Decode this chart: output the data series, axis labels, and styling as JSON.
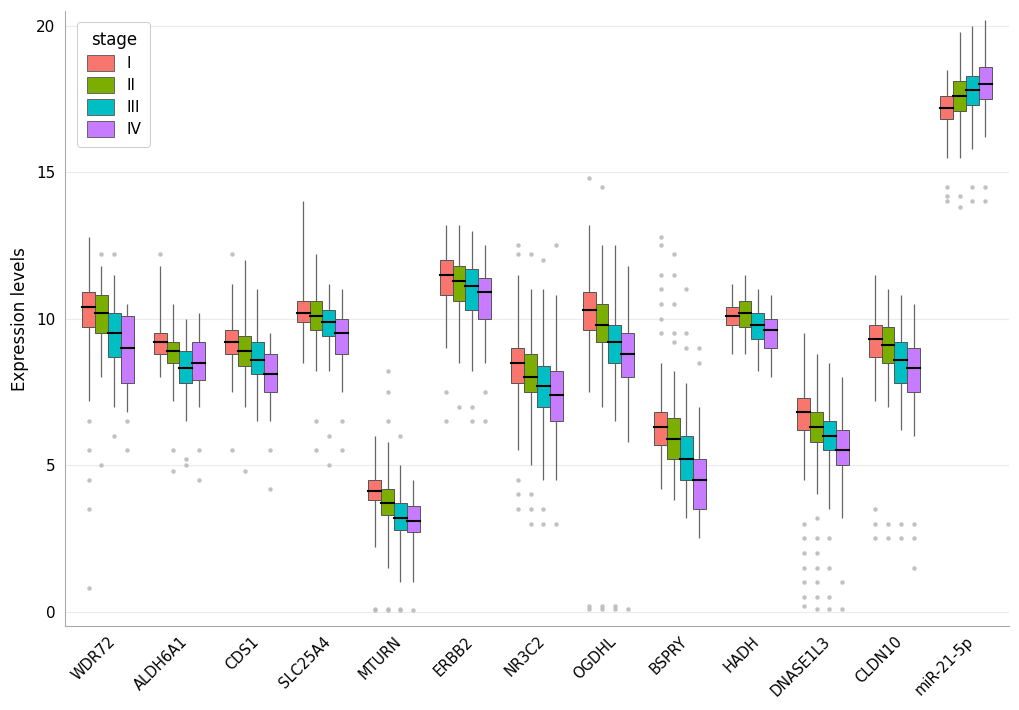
{
  "genes": [
    "WDR72",
    "ALDH6A1",
    "CDS1",
    "SLC25A4",
    "MTURN",
    "ERBB2",
    "NR3C2",
    "OGDHL",
    "BSPRY",
    "HADH",
    "DNASE1L3",
    "CLDN10",
    "miR-21-5p"
  ],
  "stages": [
    "I",
    "II",
    "III",
    "IV"
  ],
  "stage_colors": [
    "#F8766D",
    "#7CAE00",
    "#00BFC4",
    "#C77CFF"
  ],
  "ylabel": "Expression levels",
  "ylim": [
    -0.5,
    20.5
  ],
  "yticks": [
    0,
    5,
    10,
    15,
    20
  ],
  "box_data": {
    "WDR72": {
      "I": {
        "q1": 9.7,
        "median": 10.4,
        "q3": 10.9,
        "whislo": 7.2,
        "whishi": 12.8,
        "fliers": [
          6.5,
          5.5,
          4.5,
          3.5,
          0.8
        ]
      },
      "II": {
        "q1": 9.5,
        "median": 10.2,
        "q3": 10.8,
        "whislo": 8.0,
        "whishi": 11.8,
        "fliers": [
          12.2,
          5.0
        ]
      },
      "III": {
        "q1": 8.7,
        "median": 9.5,
        "q3": 10.2,
        "whislo": 7.0,
        "whishi": 11.5,
        "fliers": [
          12.2,
          6.0
        ]
      },
      "IV": {
        "q1": 7.8,
        "median": 9.0,
        "q3": 10.1,
        "whislo": 6.8,
        "whishi": 10.5,
        "fliers": [
          6.5,
          5.5
        ]
      }
    },
    "ALDH6A1": {
      "I": {
        "q1": 8.8,
        "median": 9.2,
        "q3": 9.5,
        "whislo": 8.0,
        "whishi": 11.8,
        "fliers": [
          12.2
        ]
      },
      "II": {
        "q1": 8.5,
        "median": 8.9,
        "q3": 9.2,
        "whislo": 7.2,
        "whishi": 10.5,
        "fliers": [
          5.5,
          4.8
        ]
      },
      "III": {
        "q1": 7.8,
        "median": 8.3,
        "q3": 8.9,
        "whislo": 6.5,
        "whishi": 10.0,
        "fliers": [
          5.0,
          5.2
        ]
      },
      "IV": {
        "q1": 7.9,
        "median": 8.5,
        "q3": 9.2,
        "whislo": 7.0,
        "whishi": 10.2,
        "fliers": [
          5.5,
          4.5
        ]
      }
    },
    "CDS1": {
      "I": {
        "q1": 8.8,
        "median": 9.2,
        "q3": 9.6,
        "whislo": 7.5,
        "whishi": 11.2,
        "fliers": [
          5.5,
          12.2
        ]
      },
      "II": {
        "q1": 8.4,
        "median": 8.9,
        "q3": 9.4,
        "whislo": 7.0,
        "whishi": 12.0,
        "fliers": [
          4.8
        ]
      },
      "III": {
        "q1": 8.1,
        "median": 8.6,
        "q3": 9.2,
        "whislo": 6.5,
        "whishi": 11.0,
        "fliers": []
      },
      "IV": {
        "q1": 7.5,
        "median": 8.1,
        "q3": 8.8,
        "whislo": 6.5,
        "whishi": 9.5,
        "fliers": [
          5.5,
          4.2
        ]
      }
    },
    "SLC25A4": {
      "I": {
        "q1": 9.9,
        "median": 10.2,
        "q3": 10.6,
        "whislo": 8.5,
        "whishi": 14.0,
        "fliers": []
      },
      "II": {
        "q1": 9.6,
        "median": 10.1,
        "q3": 10.6,
        "whislo": 8.2,
        "whishi": 12.2,
        "fliers": [
          6.5,
          5.5
        ]
      },
      "III": {
        "q1": 9.4,
        "median": 9.9,
        "q3": 10.3,
        "whislo": 8.2,
        "whishi": 11.2,
        "fliers": [
          6.0,
          5.0
        ]
      },
      "IV": {
        "q1": 8.8,
        "median": 9.5,
        "q3": 10.0,
        "whislo": 7.5,
        "whishi": 11.0,
        "fliers": [
          6.5,
          5.5
        ]
      }
    },
    "MTURN": {
      "I": {
        "q1": 3.8,
        "median": 4.1,
        "q3": 4.5,
        "whislo": 2.2,
        "whishi": 6.0,
        "fliers": [
          0.1,
          0.05
        ]
      },
      "II": {
        "q1": 3.3,
        "median": 3.7,
        "q3": 4.2,
        "whislo": 1.5,
        "whishi": 5.8,
        "fliers": [
          0.1,
          0.05,
          6.5,
          7.5,
          8.2
        ]
      },
      "III": {
        "q1": 2.8,
        "median": 3.2,
        "q3": 3.7,
        "whislo": 1.0,
        "whishi": 5.0,
        "fliers": [
          0.05,
          0.1,
          6.0
        ]
      },
      "IV": {
        "q1": 2.7,
        "median": 3.1,
        "q3": 3.6,
        "whislo": 1.0,
        "whishi": 4.5,
        "fliers": [
          0.05
        ]
      }
    },
    "ERBB2": {
      "I": {
        "q1": 10.8,
        "median": 11.5,
        "q3": 12.0,
        "whislo": 9.0,
        "whishi": 13.2,
        "fliers": [
          7.5,
          6.5
        ]
      },
      "II": {
        "q1": 10.6,
        "median": 11.3,
        "q3": 11.8,
        "whislo": 8.5,
        "whishi": 13.2,
        "fliers": [
          7.0
        ]
      },
      "III": {
        "q1": 10.3,
        "median": 11.1,
        "q3": 11.7,
        "whislo": 8.2,
        "whishi": 13.0,
        "fliers": [
          7.0,
          6.5
        ]
      },
      "IV": {
        "q1": 10.0,
        "median": 10.9,
        "q3": 11.4,
        "whislo": 8.5,
        "whishi": 12.5,
        "fliers": [
          7.5,
          6.5
        ]
      }
    },
    "NR3C2": {
      "I": {
        "q1": 7.8,
        "median": 8.5,
        "q3": 9.0,
        "whislo": 5.5,
        "whishi": 11.5,
        "fliers": [
          4.5,
          4.0,
          3.5,
          12.5,
          12.2
        ]
      },
      "II": {
        "q1": 7.5,
        "median": 8.0,
        "q3": 8.8,
        "whislo": 5.0,
        "whishi": 11.0,
        "fliers": [
          4.0,
          3.5,
          3.0,
          12.2
        ]
      },
      "III": {
        "q1": 7.0,
        "median": 7.7,
        "q3": 8.4,
        "whislo": 4.5,
        "whishi": 11.0,
        "fliers": [
          3.5,
          3.0,
          12.0
        ]
      },
      "IV": {
        "q1": 6.5,
        "median": 7.4,
        "q3": 8.2,
        "whislo": 4.5,
        "whishi": 10.8,
        "fliers": [
          3.0,
          12.5
        ]
      }
    },
    "OGDHL": {
      "I": {
        "q1": 9.6,
        "median": 10.3,
        "q3": 10.9,
        "whislo": 7.5,
        "whishi": 13.2,
        "fliers": [
          14.8,
          0.2,
          0.1
        ]
      },
      "II": {
        "q1": 9.2,
        "median": 9.8,
        "q3": 10.5,
        "whislo": 7.0,
        "whishi": 12.5,
        "fliers": [
          14.5,
          0.2,
          0.1
        ]
      },
      "III": {
        "q1": 8.5,
        "median": 9.2,
        "q3": 9.8,
        "whislo": 6.5,
        "whishi": 12.5,
        "fliers": [
          0.2,
          0.1
        ]
      },
      "IV": {
        "q1": 8.0,
        "median": 8.8,
        "q3": 9.5,
        "whislo": 5.8,
        "whishi": 11.8,
        "fliers": [
          0.1
        ]
      }
    },
    "BSPRY": {
      "I": {
        "q1": 5.7,
        "median": 6.3,
        "q3": 6.8,
        "whislo": 4.2,
        "whishi": 8.5,
        "fliers": [
          12.5,
          12.8,
          11.5,
          11.0,
          10.5,
          10.0,
          9.5
        ]
      },
      "II": {
        "q1": 5.2,
        "median": 5.9,
        "q3": 6.6,
        "whislo": 3.8,
        "whishi": 8.2,
        "fliers": [
          12.2,
          11.5,
          10.5,
          9.5,
          9.2
        ]
      },
      "III": {
        "q1": 4.5,
        "median": 5.2,
        "q3": 6.0,
        "whislo": 3.2,
        "whishi": 7.8,
        "fliers": [
          11.0,
          9.5,
          9.0
        ]
      },
      "IV": {
        "q1": 3.5,
        "median": 4.5,
        "q3": 5.2,
        "whislo": 2.5,
        "whishi": 7.0,
        "fliers": [
          9.0,
          8.5
        ]
      }
    },
    "HADH": {
      "I": {
        "q1": 9.8,
        "median": 10.1,
        "q3": 10.4,
        "whislo": 8.8,
        "whishi": 11.2,
        "fliers": []
      },
      "II": {
        "q1": 9.7,
        "median": 10.2,
        "q3": 10.6,
        "whislo": 8.8,
        "whishi": 11.5,
        "fliers": []
      },
      "III": {
        "q1": 9.3,
        "median": 9.8,
        "q3": 10.2,
        "whislo": 8.2,
        "whishi": 11.0,
        "fliers": []
      },
      "IV": {
        "q1": 9.0,
        "median": 9.6,
        "q3": 10.0,
        "whislo": 8.0,
        "whishi": 10.8,
        "fliers": []
      }
    },
    "DNASE1L3": {
      "I": {
        "q1": 6.2,
        "median": 6.8,
        "q3": 7.3,
        "whislo": 4.5,
        "whishi": 9.5,
        "fliers": [
          0.2,
          0.5,
          1.0,
          1.5,
          2.0,
          2.5,
          3.0
        ]
      },
      "II": {
        "q1": 5.8,
        "median": 6.3,
        "q3": 6.8,
        "whislo": 4.0,
        "whishi": 8.8,
        "fliers": [
          0.1,
          0.5,
          1.0,
          1.5,
          2.0,
          2.5,
          3.2
        ]
      },
      "III": {
        "q1": 5.5,
        "median": 6.0,
        "q3": 6.5,
        "whislo": 3.5,
        "whishi": 8.5,
        "fliers": [
          0.1,
          0.5,
          1.5,
          2.5
        ]
      },
      "IV": {
        "q1": 5.0,
        "median": 5.5,
        "q3": 6.2,
        "whislo": 3.2,
        "whishi": 8.0,
        "fliers": [
          0.1,
          1.0
        ]
      }
    },
    "CLDN10": {
      "I": {
        "q1": 8.7,
        "median": 9.3,
        "q3": 9.8,
        "whislo": 7.2,
        "whishi": 11.5,
        "fliers": [
          3.5,
          3.0,
          2.5
        ]
      },
      "II": {
        "q1": 8.5,
        "median": 9.1,
        "q3": 9.7,
        "whislo": 7.0,
        "whishi": 11.0,
        "fliers": [
          3.0,
          2.5
        ]
      },
      "III": {
        "q1": 7.8,
        "median": 8.6,
        "q3": 9.2,
        "whislo": 6.2,
        "whishi": 10.8,
        "fliers": [
          3.0,
          2.5
        ]
      },
      "IV": {
        "q1": 7.5,
        "median": 8.3,
        "q3": 9.0,
        "whislo": 6.0,
        "whishi": 10.5,
        "fliers": [
          3.0,
          2.5,
          1.5
        ]
      }
    },
    "miR-21-5p": {
      "I": {
        "q1": 16.8,
        "median": 17.2,
        "q3": 17.6,
        "whislo": 15.5,
        "whishi": 18.5,
        "fliers": [
          14.5,
          14.2,
          14.0
        ]
      },
      "II": {
        "q1": 17.1,
        "median": 17.6,
        "q3": 18.1,
        "whislo": 15.5,
        "whishi": 19.8,
        "fliers": [
          14.2,
          13.8
        ]
      },
      "III": {
        "q1": 17.3,
        "median": 17.8,
        "q3": 18.3,
        "whislo": 15.8,
        "whishi": 20.0,
        "fliers": [
          14.5,
          14.0
        ]
      },
      "IV": {
        "q1": 17.5,
        "median": 18.0,
        "q3": 18.6,
        "whislo": 16.2,
        "whishi": 20.2,
        "fliers": [
          14.5,
          14.0
        ]
      }
    }
  },
  "background_color": "#FFFFFF",
  "grid_color": "#EBEBEB",
  "whisker_color": "#666666",
  "median_color": "#000000",
  "flier_color": "#BBBBBB",
  "spine_color": "#AAAAAA"
}
